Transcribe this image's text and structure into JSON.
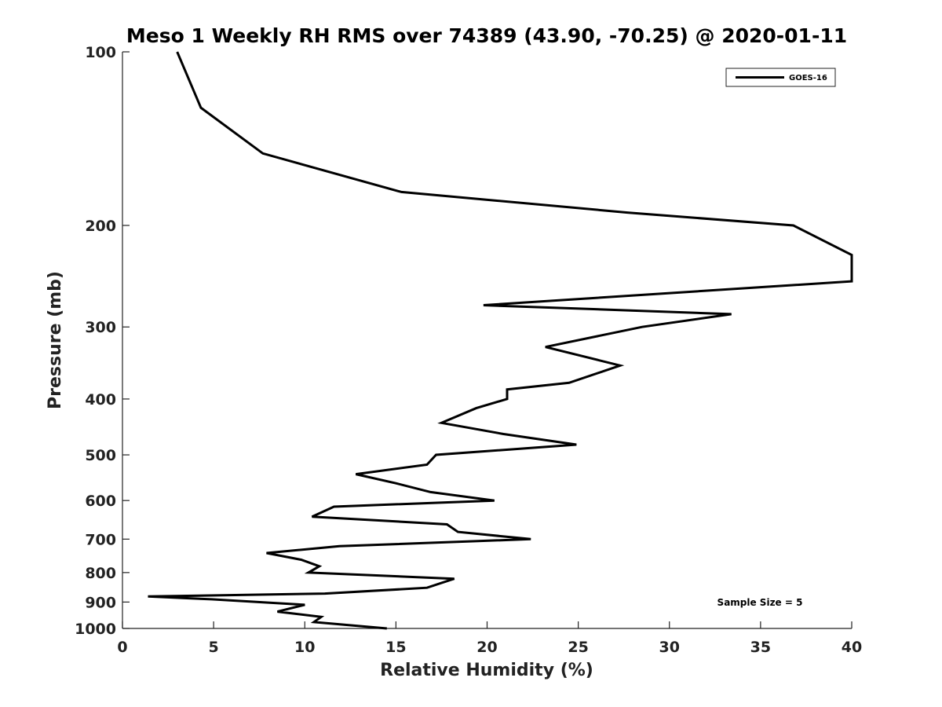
{
  "chart_data": {
    "type": "line",
    "title": "Meso 1 Weekly RH RMS over 74389 (43.90, -70.25) @ 2020-01-11",
    "xlabel": "Relative Humidity (%)",
    "ylabel": "Pressure (mb)",
    "xlim": [
      0,
      40
    ],
    "ylim": [
      100,
      1000
    ],
    "y_scale": "log",
    "y_reversed": true,
    "grid": false,
    "legend_position": "top-right",
    "x_ticks": [
      0,
      5,
      10,
      15,
      20,
      25,
      30,
      35,
      40
    ],
    "y_ticks": [
      100,
      200,
      300,
      400,
      500,
      600,
      700,
      800,
      900,
      1000
    ],
    "series": [
      {
        "name": "GOES-16",
        "color": "#000000",
        "points": [
          [
            3.0,
            100
          ],
          [
            4.3,
            125
          ],
          [
            7.7,
            150
          ],
          [
            15.3,
            175
          ],
          [
            27.7,
            190
          ],
          [
            36.8,
            200
          ],
          [
            40.0,
            225
          ],
          [
            40.0,
            250
          ],
          [
            19.8,
            275
          ],
          [
            33.4,
            285
          ],
          [
            28.5,
            300
          ],
          [
            23.2,
            325
          ],
          [
            27.3,
            350
          ],
          [
            24.5,
            375
          ],
          [
            21.1,
            385
          ],
          [
            21.1,
            400
          ],
          [
            19.4,
            415
          ],
          [
            17.5,
            440
          ],
          [
            20.9,
            460
          ],
          [
            24.9,
            480
          ],
          [
            17.2,
            500
          ],
          [
            16.7,
            520
          ],
          [
            12.8,
            540
          ],
          [
            15.0,
            560
          ],
          [
            16.9,
            580
          ],
          [
            20.4,
            600
          ],
          [
            11.6,
            615
          ],
          [
            10.4,
            640
          ],
          [
            17.8,
            660
          ],
          [
            18.4,
            680
          ],
          [
            22.4,
            700
          ],
          [
            11.9,
            720
          ],
          [
            7.9,
            740
          ],
          [
            9.8,
            760
          ],
          [
            10.8,
            780
          ],
          [
            10.2,
            800
          ],
          [
            18.2,
            820
          ],
          [
            16.7,
            850
          ],
          [
            11.1,
            870
          ],
          [
            1.4,
            880
          ],
          [
            4.9,
            890
          ],
          [
            10.0,
            910
          ],
          [
            8.5,
            935
          ],
          [
            10.9,
            955
          ],
          [
            10.5,
            975
          ],
          [
            14.5,
            1000
          ]
        ]
      }
    ],
    "annotation": "Sample Size = 5"
  }
}
